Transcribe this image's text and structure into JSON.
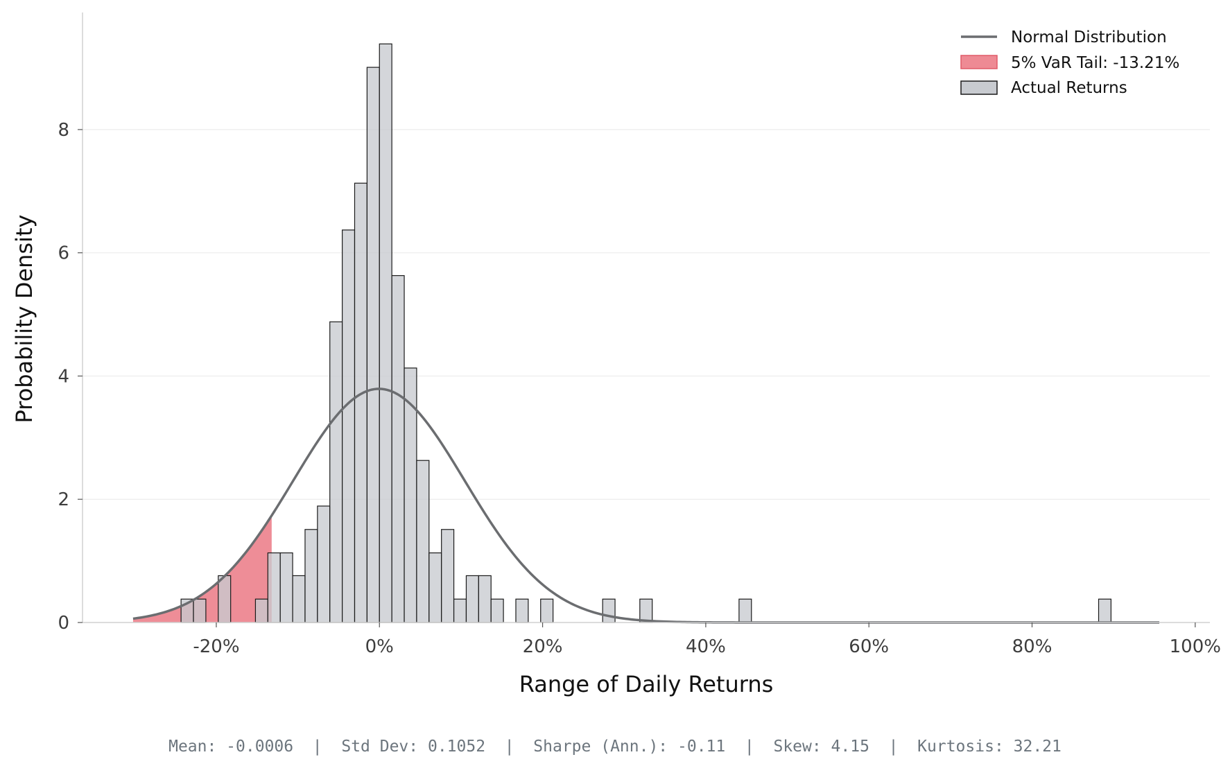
{
  "chart_data": {
    "type": "bar",
    "title": "",
    "xlabel": "Range of Daily Returns",
    "ylabel": "Probability Density",
    "xlim": [
      -0.364,
      1.018
    ],
    "ylim": [
      0,
      9.9
    ],
    "x_ticks": [
      {
        "value": -0.2,
        "label": "-20%"
      },
      {
        "value": 0.0,
        "label": "0%"
      },
      {
        "value": 0.2,
        "label": "20%"
      },
      {
        "value": 0.4,
        "label": "40%"
      },
      {
        "value": 0.6,
        "label": "60%"
      },
      {
        "value": 0.8,
        "label": "80%"
      },
      {
        "value": 1.0,
        "label": "100%"
      }
    ],
    "y_ticks": [
      {
        "value": 0,
        "label": "0"
      },
      {
        "value": 2,
        "label": "2"
      },
      {
        "value": 4,
        "label": "4"
      },
      {
        "value": 6,
        "label": "6"
      },
      {
        "value": 8,
        "label": "8"
      }
    ],
    "grid": "horizontal",
    "legend_position": "top-right",
    "bin_width": 0.0152,
    "histogram": {
      "name": "Actual Returns",
      "color": "#c8cbd0",
      "edge_color": "#1a1a1a",
      "bins_start": [
        -0.2432,
        -0.228,
        -0.1976,
        -0.152,
        -0.1368,
        -0.1216,
        -0.1064,
        -0.0912,
        -0.076,
        -0.0608,
        -0.0456,
        -0.0304,
        -0.0152,
        0.0,
        0.0152,
        0.0304,
        0.0456,
        0.0608,
        0.076,
        0.0912,
        0.1064,
        0.1216,
        0.1368,
        0.1672,
        0.1976,
        0.2736,
        0.3192,
        0.4408,
        0.8816
      ],
      "density": [
        0.38,
        0.38,
        0.76,
        0.38,
        1.13,
        1.13,
        0.76,
        1.51,
        1.89,
        4.88,
        6.37,
        7.13,
        9.01,
        9.39,
        5.63,
        4.13,
        2.63,
        1.13,
        1.51,
        0.38,
        0.76,
        0.76,
        0.38,
        0.38,
        0.38,
        0.38,
        0.38,
        0.38,
        0.38
      ]
    },
    "normal_curve": {
      "name": "Normal Distribution",
      "color": "#6b6d70",
      "mean": -0.0006,
      "std": 0.1052,
      "x_range": [
        -0.302,
        0.956
      ]
    },
    "var_tail": {
      "name": "5% VaR Tail: -13.21%",
      "color": "#e8616f",
      "threshold": -0.1321
    },
    "legend": [
      {
        "label": "Normal Distribution",
        "kind": "line",
        "color": "#6b6d70"
      },
      {
        "label": "5% VaR Tail: -13.21%",
        "kind": "patch",
        "color": "#e8616f"
      },
      {
        "label": "Actual Returns",
        "kind": "patch",
        "color": "#c8cbd0"
      }
    ]
  },
  "stats_line": "Mean: -0.0006  |  Std Dev: 0.1052  |  Sharpe (Ann.): -0.11  |  Skew: 4.15  |  Kurtosis: 32.21"
}
